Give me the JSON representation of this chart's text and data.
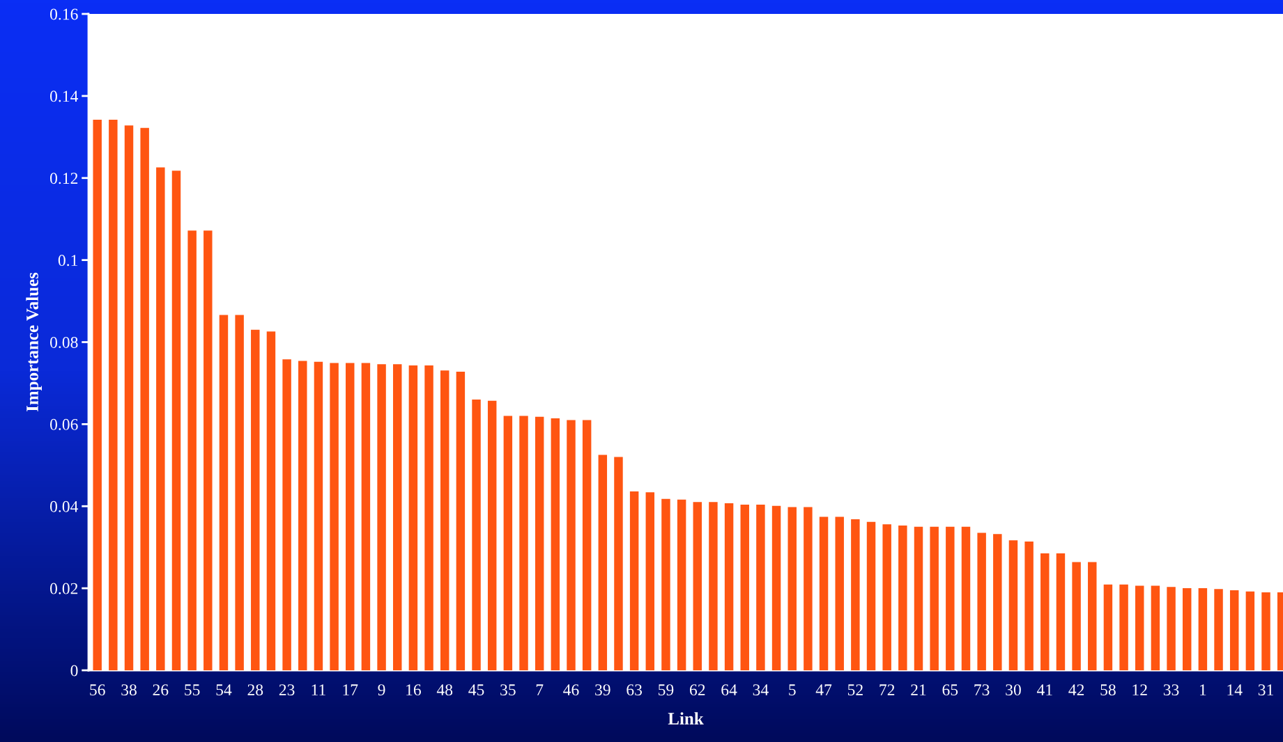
{
  "chart_data": {
    "type": "bar",
    "xlabel": "Link",
    "ylabel": "Importance Values",
    "categories": [
      "56",
      null,
      "38",
      null,
      "26",
      null,
      "55",
      null,
      "54",
      null,
      "28",
      null,
      "23",
      null,
      "11",
      null,
      "17",
      null,
      "9",
      null,
      "16",
      null,
      "48",
      null,
      "45",
      null,
      "35",
      null,
      "7",
      null,
      "46",
      null,
      "39",
      null,
      "63",
      null,
      "59",
      null,
      "62",
      null,
      "64",
      null,
      "34",
      null,
      "5",
      null,
      "47",
      null,
      "52",
      null,
      "72",
      null,
      "21",
      null,
      "65",
      null,
      "73",
      null,
      "30",
      null,
      "41",
      null,
      "42",
      null,
      "58",
      null,
      "12",
      null,
      "33",
      null,
      "1",
      null,
      "14",
      null,
      "31",
      null
    ],
    "values": [
      0.1342,
      0.1342,
      0.1328,
      0.1322,
      0.1226,
      0.1218,
      0.1072,
      0.1072,
      0.0866,
      0.0866,
      0.083,
      0.0826,
      0.0758,
      0.0754,
      0.0752,
      0.0749,
      0.0749,
      0.0749,
      0.0746,
      0.0746,
      0.0743,
      0.0743,
      0.0731,
      0.0728,
      0.066,
      0.0657,
      0.062,
      0.062,
      0.0618,
      0.0614,
      0.061,
      0.061,
      0.0525,
      0.052,
      0.0436,
      0.0434,
      0.0418,
      0.0416,
      0.041,
      0.041,
      0.0407,
      0.0404,
      0.0404,
      0.0401,
      0.0398,
      0.0398,
      0.0374,
      0.0374,
      0.0368,
      0.0362,
      0.0356,
      0.0353,
      0.035,
      0.035,
      0.035,
      0.035,
      0.0335,
      0.0332,
      0.0317,
      0.0314,
      0.0285,
      0.0285,
      0.0264,
      0.0264,
      0.0209,
      0.0209,
      0.0206,
      0.0206,
      0.0203,
      0.02,
      0.02,
      0.0198,
      0.0195,
      0.0192,
      0.019,
      0.019
    ],
    "color": "#ff5511",
    "ylim": [
      0,
      0.16
    ],
    "yticks": [
      0,
      0.02,
      0.04,
      0.06,
      0.08,
      0.1,
      0.12,
      0.14,
      0.16
    ],
    "grid": false,
    "legend": false
  }
}
